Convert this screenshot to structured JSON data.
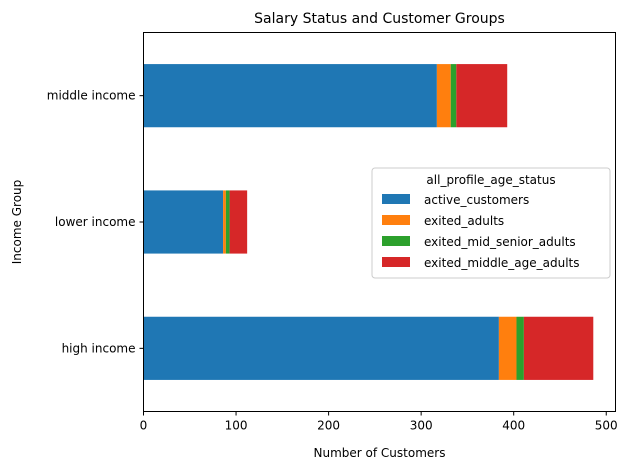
{
  "chart_data": {
    "type": "bar",
    "orientation": "horizontal",
    "stacked": true,
    "title": "Salary Status and Customer Groups",
    "xlabel": "Number of Customers",
    "ylabel": "Income Group",
    "categories": [
      "high income",
      "lower income",
      "middle income"
    ],
    "series": [
      {
        "name": "active_customers",
        "color": "#1f77b4",
        "values": [
          384,
          86,
          317
        ]
      },
      {
        "name": "exited_adults",
        "color": "#ff7f0e",
        "values": [
          19,
          3,
          15
        ]
      },
      {
        "name": "exited_mid_senior_adults",
        "color": "#2ca02c",
        "values": [
          8,
          4,
          6
        ]
      },
      {
        "name": "exited_middle_age_adults",
        "color": "#d62728",
        "values": [
          75,
          19,
          55
        ]
      }
    ],
    "xlim": [
      0,
      510
    ],
    "xticks": [
      0,
      100,
      200,
      300,
      400,
      500
    ],
    "grid": false,
    "legend": {
      "title": "all_profile_age_status",
      "placement": "center-right"
    }
  }
}
